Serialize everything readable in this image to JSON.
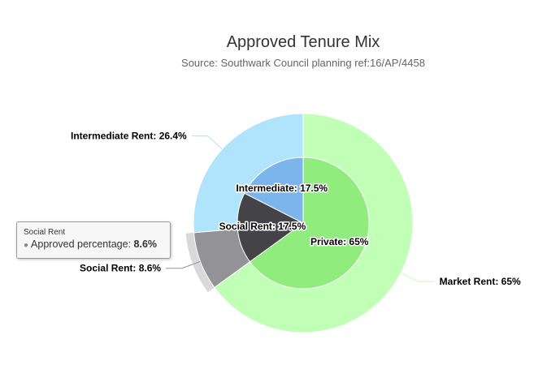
{
  "chart_data": {
    "type": "pie",
    "title": "Approved Tenure Mix",
    "subtitle": "Source: Southwark Council planning ref:16/AP/4458",
    "inner_ring": [
      {
        "name": "Private",
        "value": 65,
        "label": "Private: 65%",
        "color": "#90ed7d"
      },
      {
        "name": "Social",
        "value": 17.5,
        "label": "Social Rent: 17.5%",
        "color": "#434348"
      },
      {
        "name": "Intermediate",
        "value": 17.5,
        "label": "Intermediate: 17.5%",
        "color": "#7cb5ec"
      }
    ],
    "outer_ring": [
      {
        "name": "Market Rent",
        "value": 65,
        "label": "Market Rent: 65%",
        "color": "#c1ffb7"
      },
      {
        "name": "Social Rent",
        "value": 8.6,
        "label": "Social Rent: 8.6%",
        "color": "#929297",
        "hovered": true
      },
      {
        "name": "Intermediate Rent",
        "value": 26.4,
        "label": "Intermediate Rent: 26.4%",
        "color": "#b0e4fd"
      }
    ],
    "tooltip": {
      "header": "Social Rent",
      "series_name": "Approved percentage: ",
      "value": "8.6%"
    }
  }
}
